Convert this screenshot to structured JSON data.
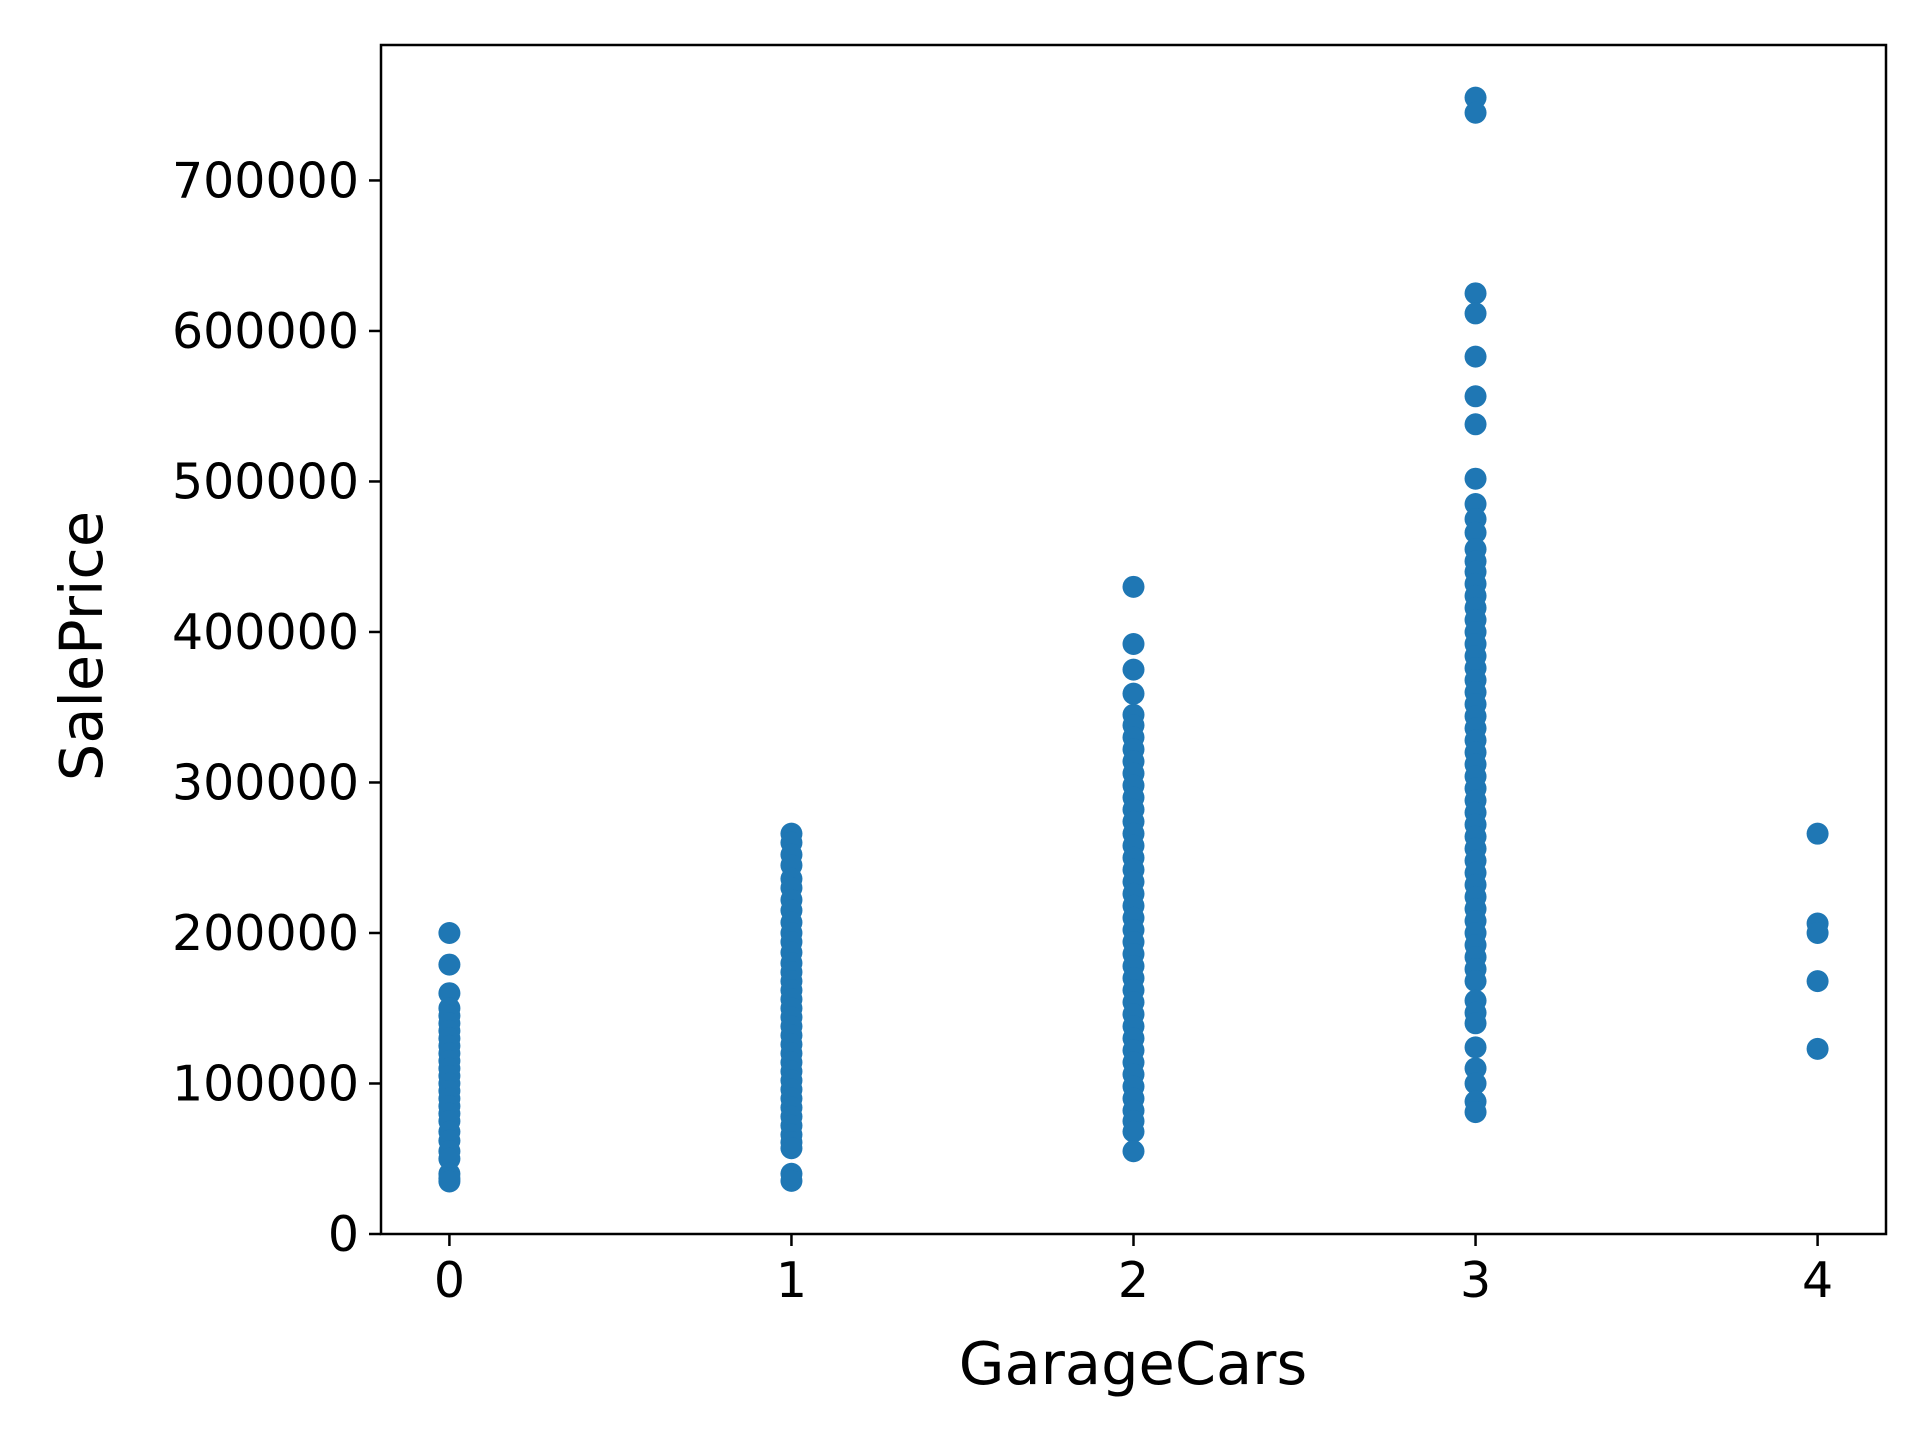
{
  "chart_data": {
    "type": "scatter",
    "xlabel": "GarageCars",
    "ylabel": "SalePrice",
    "xlim": [
      -0.2,
      4.2
    ],
    "ylim": [
      0,
      790000
    ],
    "x_ticks": [
      0,
      1,
      2,
      3,
      4
    ],
    "x_tick_labels": [
      "0",
      "1",
      "2",
      "3",
      "4"
    ],
    "y_ticks": [
      0,
      100000,
      200000,
      300000,
      400000,
      500000,
      600000,
      700000
    ],
    "y_tick_labels": [
      "0",
      "100000",
      "200000",
      "300000",
      "400000",
      "500000",
      "600000",
      "700000"
    ],
    "grid": false,
    "marker_color": "#1f77b4",
    "series": [
      {
        "points": [
          {
            "x": 0,
            "y": 200000
          },
          {
            "x": 0,
            "y": 179000
          },
          {
            "x": 0,
            "y": 160000
          },
          {
            "x": 0,
            "y": 150000
          },
          {
            "x": 0,
            "y": 145000
          },
          {
            "x": 0,
            "y": 140000
          },
          {
            "x": 0,
            "y": 135000
          },
          {
            "x": 0,
            "y": 130000
          },
          {
            "x": 0,
            "y": 125000
          },
          {
            "x": 0,
            "y": 120000
          },
          {
            "x": 0,
            "y": 115000
          },
          {
            "x": 0,
            "y": 110000
          },
          {
            "x": 0,
            "y": 105000
          },
          {
            "x": 0,
            "y": 100000
          },
          {
            "x": 0,
            "y": 95000
          },
          {
            "x": 0,
            "y": 90000
          },
          {
            "x": 0,
            "y": 85000
          },
          {
            "x": 0,
            "y": 80000
          },
          {
            "x": 0,
            "y": 75000
          },
          {
            "x": 0,
            "y": 68000
          },
          {
            "x": 0,
            "y": 62000
          },
          {
            "x": 0,
            "y": 55000
          },
          {
            "x": 0,
            "y": 50000
          },
          {
            "x": 0,
            "y": 40000
          },
          {
            "x": 0,
            "y": 37000
          },
          {
            "x": 0,
            "y": 34900
          },
          {
            "x": 1,
            "y": 266000
          },
          {
            "x": 1,
            "y": 260000
          },
          {
            "x": 1,
            "y": 252000
          },
          {
            "x": 1,
            "y": 245000
          },
          {
            "x": 1,
            "y": 236000
          },
          {
            "x": 1,
            "y": 230000
          },
          {
            "x": 1,
            "y": 222000
          },
          {
            "x": 1,
            "y": 215000
          },
          {
            "x": 1,
            "y": 207000
          },
          {
            "x": 1,
            "y": 200000
          },
          {
            "x": 1,
            "y": 194000
          },
          {
            "x": 1,
            "y": 187000
          },
          {
            "x": 1,
            "y": 180000
          },
          {
            "x": 1,
            "y": 174000
          },
          {
            "x": 1,
            "y": 168000
          },
          {
            "x": 1,
            "y": 162000
          },
          {
            "x": 1,
            "y": 156000
          },
          {
            "x": 1,
            "y": 150000
          },
          {
            "x": 1,
            "y": 144000
          },
          {
            "x": 1,
            "y": 138000
          },
          {
            "x": 1,
            "y": 132000
          },
          {
            "x": 1,
            "y": 126000
          },
          {
            "x": 1,
            "y": 120000
          },
          {
            "x": 1,
            "y": 114000
          },
          {
            "x": 1,
            "y": 108000
          },
          {
            "x": 1,
            "y": 102000
          },
          {
            "x": 1,
            "y": 96000
          },
          {
            "x": 1,
            "y": 90000
          },
          {
            "x": 1,
            "y": 84000
          },
          {
            "x": 1,
            "y": 78000
          },
          {
            "x": 1,
            "y": 72000
          },
          {
            "x": 1,
            "y": 66000
          },
          {
            "x": 1,
            "y": 61000
          },
          {
            "x": 1,
            "y": 57000
          },
          {
            "x": 1,
            "y": 40000
          },
          {
            "x": 1,
            "y": 35300
          },
          {
            "x": 2,
            "y": 430000
          },
          {
            "x": 2,
            "y": 392000
          },
          {
            "x": 2,
            "y": 375000
          },
          {
            "x": 2,
            "y": 359000
          },
          {
            "x": 2,
            "y": 345000
          },
          {
            "x": 2,
            "y": 338000
          },
          {
            "x": 2,
            "y": 330000
          },
          {
            "x": 2,
            "y": 322000
          },
          {
            "x": 2,
            "y": 314000
          },
          {
            "x": 2,
            "y": 306000
          },
          {
            "x": 2,
            "y": 298000
          },
          {
            "x": 2,
            "y": 290000
          },
          {
            "x": 2,
            "y": 282000
          },
          {
            "x": 2,
            "y": 274000
          },
          {
            "x": 2,
            "y": 266000
          },
          {
            "x": 2,
            "y": 258000
          },
          {
            "x": 2,
            "y": 250000
          },
          {
            "x": 2,
            "y": 242000
          },
          {
            "x": 2,
            "y": 234000
          },
          {
            "x": 2,
            "y": 226000
          },
          {
            "x": 2,
            "y": 218000
          },
          {
            "x": 2,
            "y": 210000
          },
          {
            "x": 2,
            "y": 202000
          },
          {
            "x": 2,
            "y": 194000
          },
          {
            "x": 2,
            "y": 186000
          },
          {
            "x": 2,
            "y": 178000
          },
          {
            "x": 2,
            "y": 170000
          },
          {
            "x": 2,
            "y": 162000
          },
          {
            "x": 2,
            "y": 154000
          },
          {
            "x": 2,
            "y": 146000
          },
          {
            "x": 2,
            "y": 138000
          },
          {
            "x": 2,
            "y": 130000
          },
          {
            "x": 2,
            "y": 122000
          },
          {
            "x": 2,
            "y": 114000
          },
          {
            "x": 2,
            "y": 106000
          },
          {
            "x": 2,
            "y": 98000
          },
          {
            "x": 2,
            "y": 90000
          },
          {
            "x": 2,
            "y": 82000
          },
          {
            "x": 2,
            "y": 75000
          },
          {
            "x": 2,
            "y": 68000
          },
          {
            "x": 2,
            "y": 55000
          },
          {
            "x": 3,
            "y": 755000
          },
          {
            "x": 3,
            "y": 745000
          },
          {
            "x": 3,
            "y": 625000
          },
          {
            "x": 3,
            "y": 611657
          },
          {
            "x": 3,
            "y": 582933
          },
          {
            "x": 3,
            "y": 556581
          },
          {
            "x": 3,
            "y": 538000
          },
          {
            "x": 3,
            "y": 501837
          },
          {
            "x": 3,
            "y": 485000
          },
          {
            "x": 3,
            "y": 475000
          },
          {
            "x": 3,
            "y": 466000
          },
          {
            "x": 3,
            "y": 455000
          },
          {
            "x": 3,
            "y": 447000
          },
          {
            "x": 3,
            "y": 440000
          },
          {
            "x": 3,
            "y": 432000
          },
          {
            "x": 3,
            "y": 424000
          },
          {
            "x": 3,
            "y": 416000
          },
          {
            "x": 3,
            "y": 408000
          },
          {
            "x": 3,
            "y": 400000
          },
          {
            "x": 3,
            "y": 392000
          },
          {
            "x": 3,
            "y": 384000
          },
          {
            "x": 3,
            "y": 376000
          },
          {
            "x": 3,
            "y": 368000
          },
          {
            "x": 3,
            "y": 360000
          },
          {
            "x": 3,
            "y": 352000
          },
          {
            "x": 3,
            "y": 344000
          },
          {
            "x": 3,
            "y": 336000
          },
          {
            "x": 3,
            "y": 328000
          },
          {
            "x": 3,
            "y": 320000
          },
          {
            "x": 3,
            "y": 312000
          },
          {
            "x": 3,
            "y": 304000
          },
          {
            "x": 3,
            "y": 296000
          },
          {
            "x": 3,
            "y": 288000
          },
          {
            "x": 3,
            "y": 280000
          },
          {
            "x": 3,
            "y": 272000
          },
          {
            "x": 3,
            "y": 264000
          },
          {
            "x": 3,
            "y": 256000
          },
          {
            "x": 3,
            "y": 248000
          },
          {
            "x": 3,
            "y": 240000
          },
          {
            "x": 3,
            "y": 232000
          },
          {
            "x": 3,
            "y": 224000
          },
          {
            "x": 3,
            "y": 216000
          },
          {
            "x": 3,
            "y": 208000
          },
          {
            "x": 3,
            "y": 200000
          },
          {
            "x": 3,
            "y": 192000
          },
          {
            "x": 3,
            "y": 184000
          },
          {
            "x": 3,
            "y": 176000
          },
          {
            "x": 3,
            "y": 168000
          },
          {
            "x": 3,
            "y": 155000
          },
          {
            "x": 3,
            "y": 147000
          },
          {
            "x": 3,
            "y": 140000
          },
          {
            "x": 3,
            "y": 124000
          },
          {
            "x": 3,
            "y": 110000
          },
          {
            "x": 3,
            "y": 100000
          },
          {
            "x": 3,
            "y": 88000
          },
          {
            "x": 3,
            "y": 81000
          },
          {
            "x": 4,
            "y": 265979
          },
          {
            "x": 4,
            "y": 206300
          },
          {
            "x": 4,
            "y": 200000
          },
          {
            "x": 4,
            "y": 168000
          },
          {
            "x": 4,
            "y": 123000
          }
        ]
      }
    ]
  }
}
